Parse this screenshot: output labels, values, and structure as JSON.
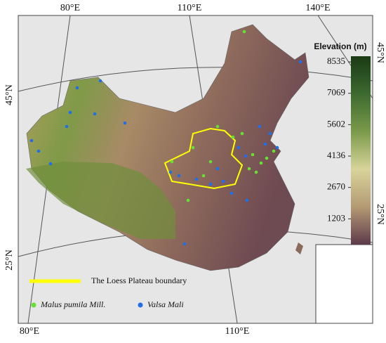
{
  "graticule": {
    "top": [
      "80°E",
      "110°E",
      "140°E"
    ],
    "left": [
      "45°N",
      "25°N"
    ],
    "bottom": [
      "80°E",
      "110°E"
    ],
    "right": [
      "45°N",
      "25°N"
    ]
  },
  "colorbar": {
    "title": "Elevation (m)",
    "range": [
      0,
      8800
    ],
    "ticks": [
      8535,
      7069,
      5602,
      4136,
      2670,
      1203
    ],
    "colors": [
      "#5c3a4a",
      "#b49a74",
      "#d8d49a",
      "#7a9a4a",
      "#3c6a30",
      "#1a3a14"
    ]
  },
  "legend": [
    {
      "label": "The Loess Plateau boundary",
      "color": "#ffff00"
    },
    {
      "label": "Malus pumila Mill.",
      "color": "#66e033"
    },
    {
      "label": "Valsa Mali",
      "color": "#1f6fe8"
    }
  ]
}
